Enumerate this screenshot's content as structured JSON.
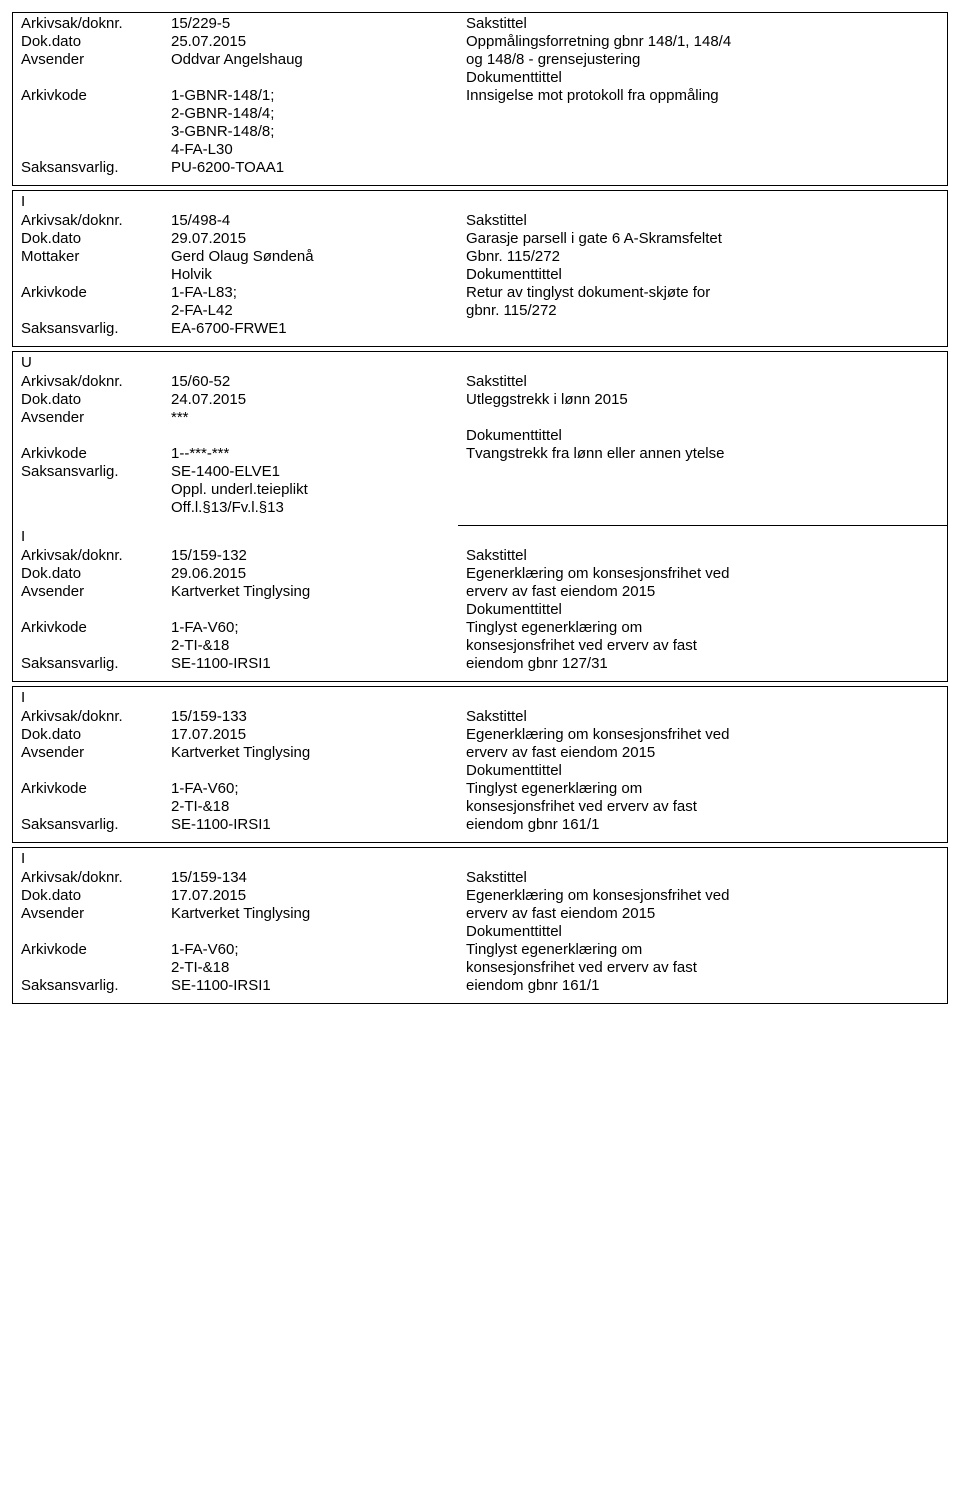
{
  "entries": [
    {
      "type": "",
      "left": [
        {
          "label": "Arkivsak/doknr.",
          "value": "15/229-5"
        },
        {
          "label": "Dok.dato",
          "value": "25.07.2015"
        },
        {
          "label": "Avsender",
          "value": "Oddvar Angelshaug"
        },
        {
          "label": "",
          "value": ""
        },
        {
          "label": "Arkivkode",
          "value": "1-GBNR-148/1;"
        },
        {
          "label": "",
          "value": "2-GBNR-148/4;"
        },
        {
          "label": "",
          "value": "3-GBNR-148/8;"
        },
        {
          "label": "",
          "value": "4-FA-L30"
        },
        {
          "label": "Saksansvarlig.",
          "value": "PU-6200-TOAA1"
        }
      ],
      "right": [
        "Sakstittel",
        "Oppmålingsforretning gbnr 148/1, 148/4",
        "og 148/8 - grensejustering",
        "Dokumenttittel",
        "Innsigelse mot protokoll fra oppmåling"
      ]
    },
    {
      "type": "I",
      "left": [
        {
          "label": "Arkivsak/doknr.",
          "value": "15/498-4"
        },
        {
          "label": "Dok.dato",
          "value": "29.07.2015"
        },
        {
          "label": "Mottaker",
          "value": "Gerd Olaug Søndenå"
        },
        {
          "label": "",
          "value": "Holvik"
        },
        {
          "label": "Arkivkode",
          "value": "1-FA-L83;"
        },
        {
          "label": "",
          "value": "2-FA-L42"
        },
        {
          "label": "Saksansvarlig.",
          "value": "EA-6700-FRWE1"
        }
      ],
      "right": [
        "Sakstittel",
        "Garasje parsell i gate 6 A-Skramsfeltet",
        "Gbnr. 115/272",
        "Dokumenttittel",
        "Retur av tinglyst dokument-skjøte for",
        "gbnr. 115/272"
      ]
    }
  ],
  "combined_entry": {
    "type": "U",
    "first": {
      "left": [
        {
          "label": "Arkivsak/doknr.",
          "value": "15/60-52"
        },
        {
          "label": "Dok.dato",
          "value": "24.07.2015"
        },
        {
          "label": "Avsender",
          "value": "***"
        },
        {
          "label": "",
          "value": ""
        },
        {
          "label": "Arkivkode",
          "value": "1--***-***"
        },
        {
          "label": "Saksansvarlig.",
          "value": "SE-1400-ELVE1"
        },
        {
          "label": "",
          "value": "Oppl. underl.teieplikt"
        },
        {
          "label": "",
          "value": "Off.l.§13/Fv.l.§13"
        }
      ],
      "right": [
        "Sakstittel",
        "Utleggstrekk i lønn 2015",
        "",
        "Dokumenttittel",
        "Tvangstrekk fra lønn eller annen ytelse"
      ]
    },
    "second_type": "I",
    "second": {
      "left": [
        {
          "label": "Arkivsak/doknr.",
          "value": "15/159-132"
        },
        {
          "label": "Dok.dato",
          "value": "29.06.2015"
        },
        {
          "label": "Avsender",
          "value": "Kartverket Tinglysing"
        },
        {
          "label": "",
          "value": ""
        },
        {
          "label": "Arkivkode",
          "value": "1-FA-V60;"
        },
        {
          "label": "",
          "value": "2-TI-&18"
        },
        {
          "label": "Saksansvarlig.",
          "value": "SE-1100-IRSI1"
        }
      ],
      "right": [
        "Sakstittel",
        "Egenerklæring om konsesjonsfrihet ved",
        "erverv av fast eiendom 2015",
        "Dokumenttittel",
        "Tinglyst egenerklæring om",
        "konsesjonsfrihet ved erverv av fast",
        "eiendom gbnr 127/31"
      ]
    }
  },
  "entries2": [
    {
      "type": "I",
      "left": [
        {
          "label": "Arkivsak/doknr.",
          "value": "15/159-133"
        },
        {
          "label": "Dok.dato",
          "value": "17.07.2015"
        },
        {
          "label": "Avsender",
          "value": "Kartverket Tinglysing"
        },
        {
          "label": "",
          "value": ""
        },
        {
          "label": "Arkivkode",
          "value": "1-FA-V60;"
        },
        {
          "label": "",
          "value": "2-TI-&18"
        },
        {
          "label": "Saksansvarlig.",
          "value": "SE-1100-IRSI1"
        }
      ],
      "right": [
        "Sakstittel",
        "Egenerklæring om konsesjonsfrihet ved",
        "erverv av fast eiendom 2015",
        "Dokumenttittel",
        "Tinglyst egenerklæring om",
        "konsesjonsfrihet ved erverv av fast",
        "eiendom gbnr 161/1"
      ]
    },
    {
      "type": "I",
      "left": [
        {
          "label": "Arkivsak/doknr.",
          "value": "15/159-134"
        },
        {
          "label": "Dok.dato",
          "value": "17.07.2015"
        },
        {
          "label": "Avsender",
          "value": "Kartverket Tinglysing"
        },
        {
          "label": "",
          "value": ""
        },
        {
          "label": "Arkivkode",
          "value": "1-FA-V60;"
        },
        {
          "label": "",
          "value": "2-TI-&18"
        },
        {
          "label": "Saksansvarlig.",
          "value": "SE-1100-IRSI1"
        }
      ],
      "right": [
        "Sakstittel",
        "Egenerklæring om konsesjonsfrihet ved",
        "erverv av fast eiendom 2015",
        "Dokumenttittel",
        "Tinglyst egenerklæring om",
        "konsesjonsfrihet ved erverv av fast",
        "eiendom gbnr 161/1"
      ]
    }
  ]
}
